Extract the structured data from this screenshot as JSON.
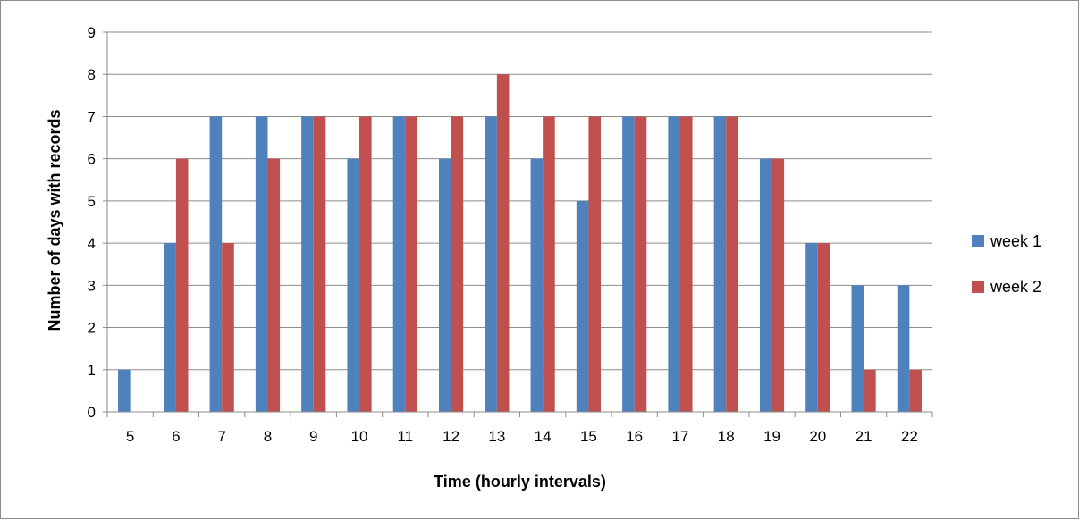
{
  "chart_data": {
    "type": "bar",
    "categories": [
      "5",
      "6",
      "7",
      "8",
      "9",
      "10",
      "11",
      "12",
      "13",
      "14",
      "15",
      "16",
      "17",
      "18",
      "19",
      "20",
      "21",
      "22"
    ],
    "series": [
      {
        "name": "week 1",
        "color": "#4f81bd",
        "values": [
          1,
          4,
          7,
          7,
          7,
          6,
          7,
          6,
          7,
          6,
          5,
          7,
          7,
          7,
          6,
          4,
          3,
          3
        ]
      },
      {
        "name": "week 2",
        "color": "#c0504d",
        "values": [
          0,
          6,
          4,
          6,
          7,
          7,
          7,
          7,
          8,
          7,
          7,
          7,
          7,
          7,
          6,
          4,
          1,
          1
        ]
      }
    ],
    "title": "",
    "xlabel": "Time (hourly intervals)",
    "ylabel": "Number of days with records",
    "ylim": [
      0,
      9
    ],
    "yticks": [
      "0",
      "1",
      "2",
      "3",
      "4",
      "5",
      "6",
      "7",
      "8",
      "9"
    ],
    "grid": true,
    "legend_position": "right"
  }
}
